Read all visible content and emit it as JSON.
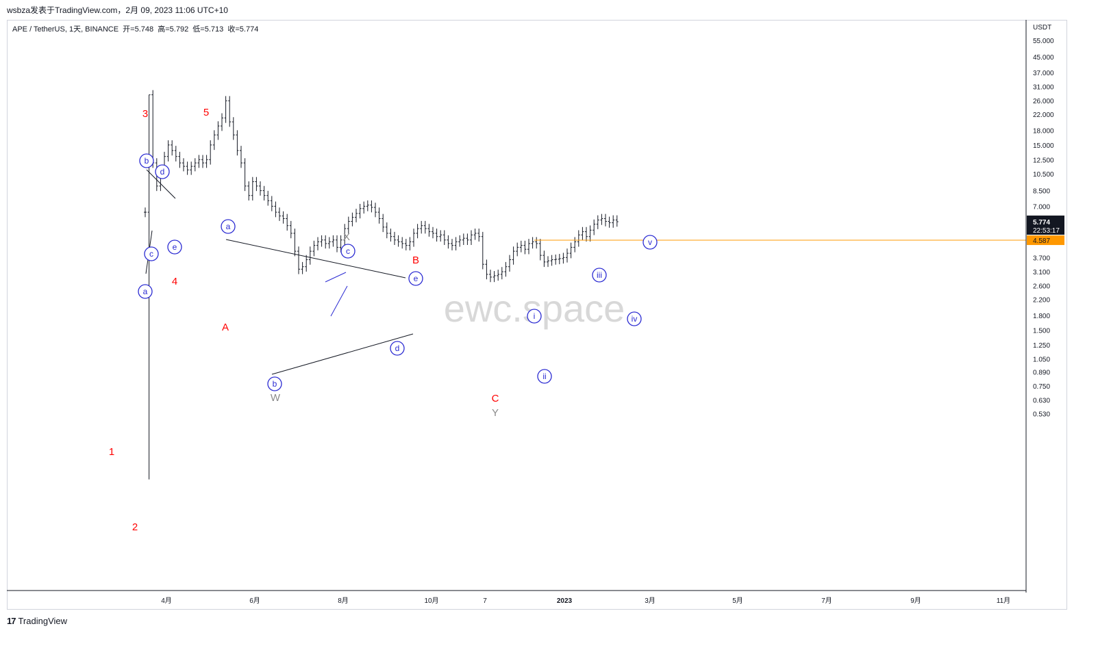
{
  "header": {
    "publisher_line": "wsbza发表于TradingView.com，2月 09, 2023 11:06 UTC+10"
  },
  "legend": {
    "text": "APE / TetherUS, 1天, BINANCE  开=5.748  高=5.792  低=5.713  收=5.774"
  },
  "footer": {
    "brand_logo": "17",
    "brand": "TradingView"
  },
  "watermark": "ewc.space",
  "colors": {
    "candle": "#131722",
    "wave_red": "#ff0000",
    "wave_blue": "#2a2ad2",
    "wave_gray": "#8a8a8a",
    "hline": "#ff9800",
    "price_bg": "#131722"
  },
  "chart_data": {
    "type": "candlestick",
    "y_scale": "log",
    "ylabel": "USDT",
    "y_ticks": [
      "55.000",
      "45.000",
      "37.000",
      "31.000",
      "26.000",
      "22.000",
      "18.000",
      "15.000",
      "12.500",
      "10.500",
      "8.500",
      "7.000",
      "5.774",
      "4.587",
      "3.700",
      "3.100",
      "2.600",
      "2.200",
      "1.800",
      "1.500",
      "1.250",
      "1.050",
      "0.890",
      "0.750",
      "0.630",
      "0.530"
    ],
    "x_ticks": [
      "4月",
      "6月",
      "8月",
      "10月",
      "7",
      "2023",
      "3月",
      "5月",
      "7月",
      "9月",
      "11月"
    ],
    "last_price": {
      "value": "5.774",
      "countdown": "22:53:17"
    },
    "horizontal_line": {
      "value": "4.587"
    },
    "price_path": [
      [
        0,
        6.5
      ],
      [
        1,
        28
      ],
      [
        2,
        12
      ],
      [
        3,
        9
      ],
      [
        4,
        11
      ],
      [
        5,
        13
      ],
      [
        6,
        15
      ],
      [
        7,
        14
      ],
      [
        8,
        13
      ],
      [
        9,
        12
      ],
      [
        10,
        11.5
      ],
      [
        11,
        11
      ],
      [
        12,
        11.5
      ],
      [
        13,
        12
      ],
      [
        14,
        12.5
      ],
      [
        15,
        12
      ],
      [
        16,
        12.5
      ],
      [
        17,
        15
      ],
      [
        18,
        17
      ],
      [
        19,
        19
      ],
      [
        20,
        21
      ],
      [
        21,
        26
      ],
      [
        22,
        20
      ],
      [
        23,
        17
      ],
      [
        24,
        14
      ],
      [
        25,
        12
      ],
      [
        26,
        9
      ],
      [
        27,
        8
      ],
      [
        28,
        9.5
      ],
      [
        29,
        9
      ],
      [
        30,
        8.5
      ],
      [
        31,
        8
      ],
      [
        32,
        7.5
      ],
      [
        33,
        7
      ],
      [
        34,
        6.5
      ],
      [
        35,
        6.2
      ],
      [
        36,
        6
      ],
      [
        37,
        5.5
      ],
      [
        38,
        5
      ],
      [
        39,
        4
      ],
      [
        40,
        3.2
      ],
      [
        41,
        3.3
      ],
      [
        42,
        3.6
      ],
      [
        43,
        4
      ],
      [
        44,
        4.3
      ],
      [
        45,
        4.5
      ],
      [
        46,
        4.6
      ],
      [
        47,
        4.4
      ],
      [
        48,
        4.5
      ],
      [
        49,
        4.6
      ],
      [
        50,
        4.2
      ],
      [
        51,
        4.6
      ],
      [
        52,
        5.3
      ],
      [
        53,
        5.8
      ],
      [
        54,
        6.1
      ],
      [
        55,
        6.4
      ],
      [
        56,
        6.8
      ],
      [
        57,
        7
      ],
      [
        58,
        7.1
      ],
      [
        59,
        6.9
      ],
      [
        60,
        6.5
      ],
      [
        61,
        6
      ],
      [
        62,
        5.4
      ],
      [
        63,
        5
      ],
      [
        64,
        4.8
      ],
      [
        65,
        4.6
      ],
      [
        66,
        4.5
      ],
      [
        67,
        4.4
      ],
      [
        68,
        4.3
      ],
      [
        69,
        4.5
      ],
      [
        70,
        5
      ],
      [
        71,
        5.3
      ],
      [
        72,
        5.5
      ],
      [
        73,
        5.3
      ],
      [
        74,
        5.1
      ],
      [
        75,
        5
      ],
      [
        76,
        4.8
      ],
      [
        77,
        4.9
      ],
      [
        78,
        4.6
      ],
      [
        79,
        4.4
      ],
      [
        80,
        4.3
      ],
      [
        81,
        4.5
      ],
      [
        82,
        4.6
      ],
      [
        83,
        4.7
      ],
      [
        84,
        4.6
      ],
      [
        85,
        4.9
      ],
      [
        86,
        5
      ],
      [
        87,
        4.8
      ],
      [
        88,
        3.4
      ],
      [
        89,
        3
      ],
      [
        90,
        2.9
      ],
      [
        91,
        2.95
      ],
      [
        92,
        3
      ],
      [
        93,
        3.1
      ],
      [
        94,
        3.3
      ],
      [
        95,
        3.6
      ],
      [
        96,
        4
      ],
      [
        97,
        4.2
      ],
      [
        98,
        4.3
      ],
      [
        99,
        4.1
      ],
      [
        100,
        4.4
      ],
      [
        101,
        4.5
      ],
      [
        102,
        4.4
      ],
      [
        103,
        3.8
      ],
      [
        104,
        3.5
      ],
      [
        105,
        3.55
      ],
      [
        106,
        3.6
      ],
      [
        107,
        3.62
      ],
      [
        108,
        3.65
      ],
      [
        109,
        3.7
      ],
      [
        110,
        3.9
      ],
      [
        111,
        4.2
      ],
      [
        112,
        4.5
      ],
      [
        113,
        4.9
      ],
      [
        114,
        5.1
      ],
      [
        115,
        4.8
      ],
      [
        116,
        5.2
      ],
      [
        117,
        5.6
      ],
      [
        118,
        5.9
      ],
      [
        119,
        6
      ],
      [
        120,
        5.8
      ],
      [
        121,
        5.7
      ],
      [
        122,
        5.9
      ],
      [
        123,
        5.774
      ]
    ],
    "wave_labels": [
      {
        "text": "1",
        "color": "red"
      },
      {
        "text": "2",
        "color": "red"
      },
      {
        "text": "3",
        "color": "red"
      },
      {
        "text": "4",
        "color": "red"
      },
      {
        "text": "5",
        "color": "red"
      },
      {
        "text": "A",
        "color": "red"
      },
      {
        "text": "B",
        "color": "red"
      },
      {
        "text": "C",
        "color": "red"
      },
      {
        "text": "W",
        "color": "gray"
      },
      {
        "text": "X",
        "color": "gray"
      },
      {
        "text": "Y",
        "color": "gray"
      },
      {
        "text": "a",
        "color": "blue"
      },
      {
        "text": "b",
        "color": "blue"
      },
      {
        "text": "c",
        "color": "blue"
      },
      {
        "text": "d",
        "color": "blue"
      },
      {
        "text": "e",
        "color": "blue"
      },
      {
        "text": "a",
        "color": "blue"
      },
      {
        "text": "b",
        "color": "blue"
      },
      {
        "text": "c",
        "color": "blue"
      },
      {
        "text": "d",
        "color": "blue"
      },
      {
        "text": "e",
        "color": "blue"
      },
      {
        "text": "i",
        "color": "blue"
      },
      {
        "text": "ii",
        "color": "blue"
      },
      {
        "text": "iii",
        "color": "blue"
      },
      {
        "text": "iv",
        "color": "blue"
      },
      {
        "text": "v",
        "color": "blue"
      }
    ]
  }
}
